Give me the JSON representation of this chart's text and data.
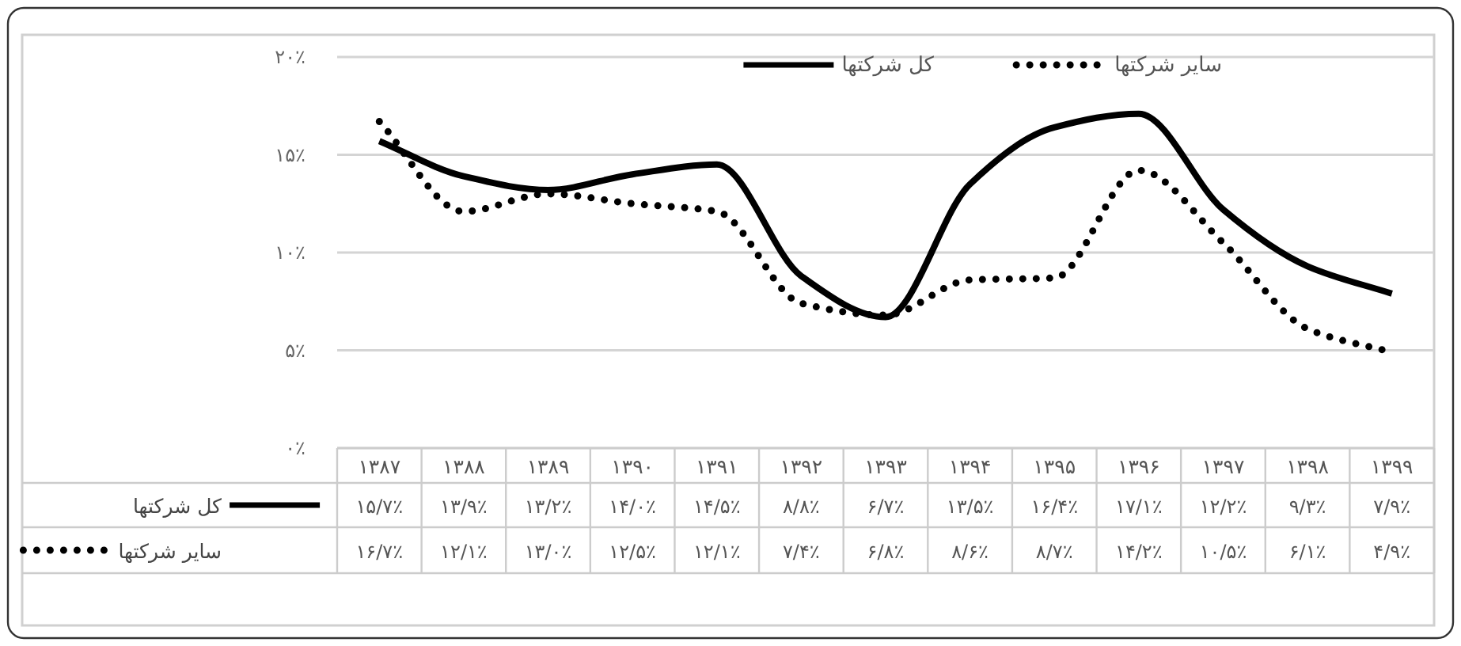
{
  "chart_data": {
    "type": "line",
    "categories": [
      "۱۳۸۷",
      "۱۳۸۸",
      "۱۳۸۹",
      "۱۳۹۰",
      "۱۳۹۱",
      "۱۳۹۲",
      "۱۳۹۳",
      "۱۳۹۴",
      "۱۳۹۵",
      "۱۳۹۶",
      "۱۳۹۷",
      "۱۳۹۸",
      "۱۳۹۹"
    ],
    "series": [
      {
        "name": "کل شرکتها",
        "color": "#000000",
        "line_style": "solid",
        "values": [
          15.7,
          13.9,
          13.2,
          14.0,
          14.5,
          8.8,
          6.7,
          13.5,
          16.4,
          17.1,
          12.2,
          9.3,
          7.9
        ],
        "value_labels": [
          "۱۵/۷٪",
          "۱۳/۹٪",
          "۱۳/۲٪",
          "۱۴/۰٪",
          "۱۴/۵٪",
          "۸/۸٪",
          "۶/۷٪",
          "۱۳/۵٪",
          "۱۶/۴٪",
          "۱۷/۱٪",
          "۱۲/۲٪",
          "۹/۳٪",
          "۷/۹٪"
        ]
      },
      {
        "name": "سایر شرکتها",
        "color": "#000000",
        "line_style": "dotted",
        "values": [
          16.7,
          12.1,
          13.0,
          12.5,
          12.1,
          7.4,
          6.8,
          8.6,
          8.7,
          14.2,
          10.5,
          6.1,
          4.9
        ],
        "value_labels": [
          "۱۶/۷٪",
          "۱۲/۱٪",
          "۱۳/۰٪",
          "۱۲/۵٪",
          "۱۲/۱٪",
          "۷/۴٪",
          "۶/۸٪",
          "۸/۶٪",
          "۸/۷٪",
          "۱۴/۲٪",
          "۱۰/۵٪",
          "۶/۱٪",
          "۴/۹٪"
        ]
      }
    ],
    "ylim": [
      0,
      20
    ],
    "yticks": [
      {
        "value": 0,
        "label": "۰٪"
      },
      {
        "value": 5,
        "label": "۵٪"
      },
      {
        "value": 10,
        "label": "۱۰٪"
      },
      {
        "value": 15,
        "label": "۱۵٪"
      },
      {
        "value": 20,
        "label": "۲۰٪"
      }
    ],
    "grid": "y",
    "legend": "top"
  }
}
